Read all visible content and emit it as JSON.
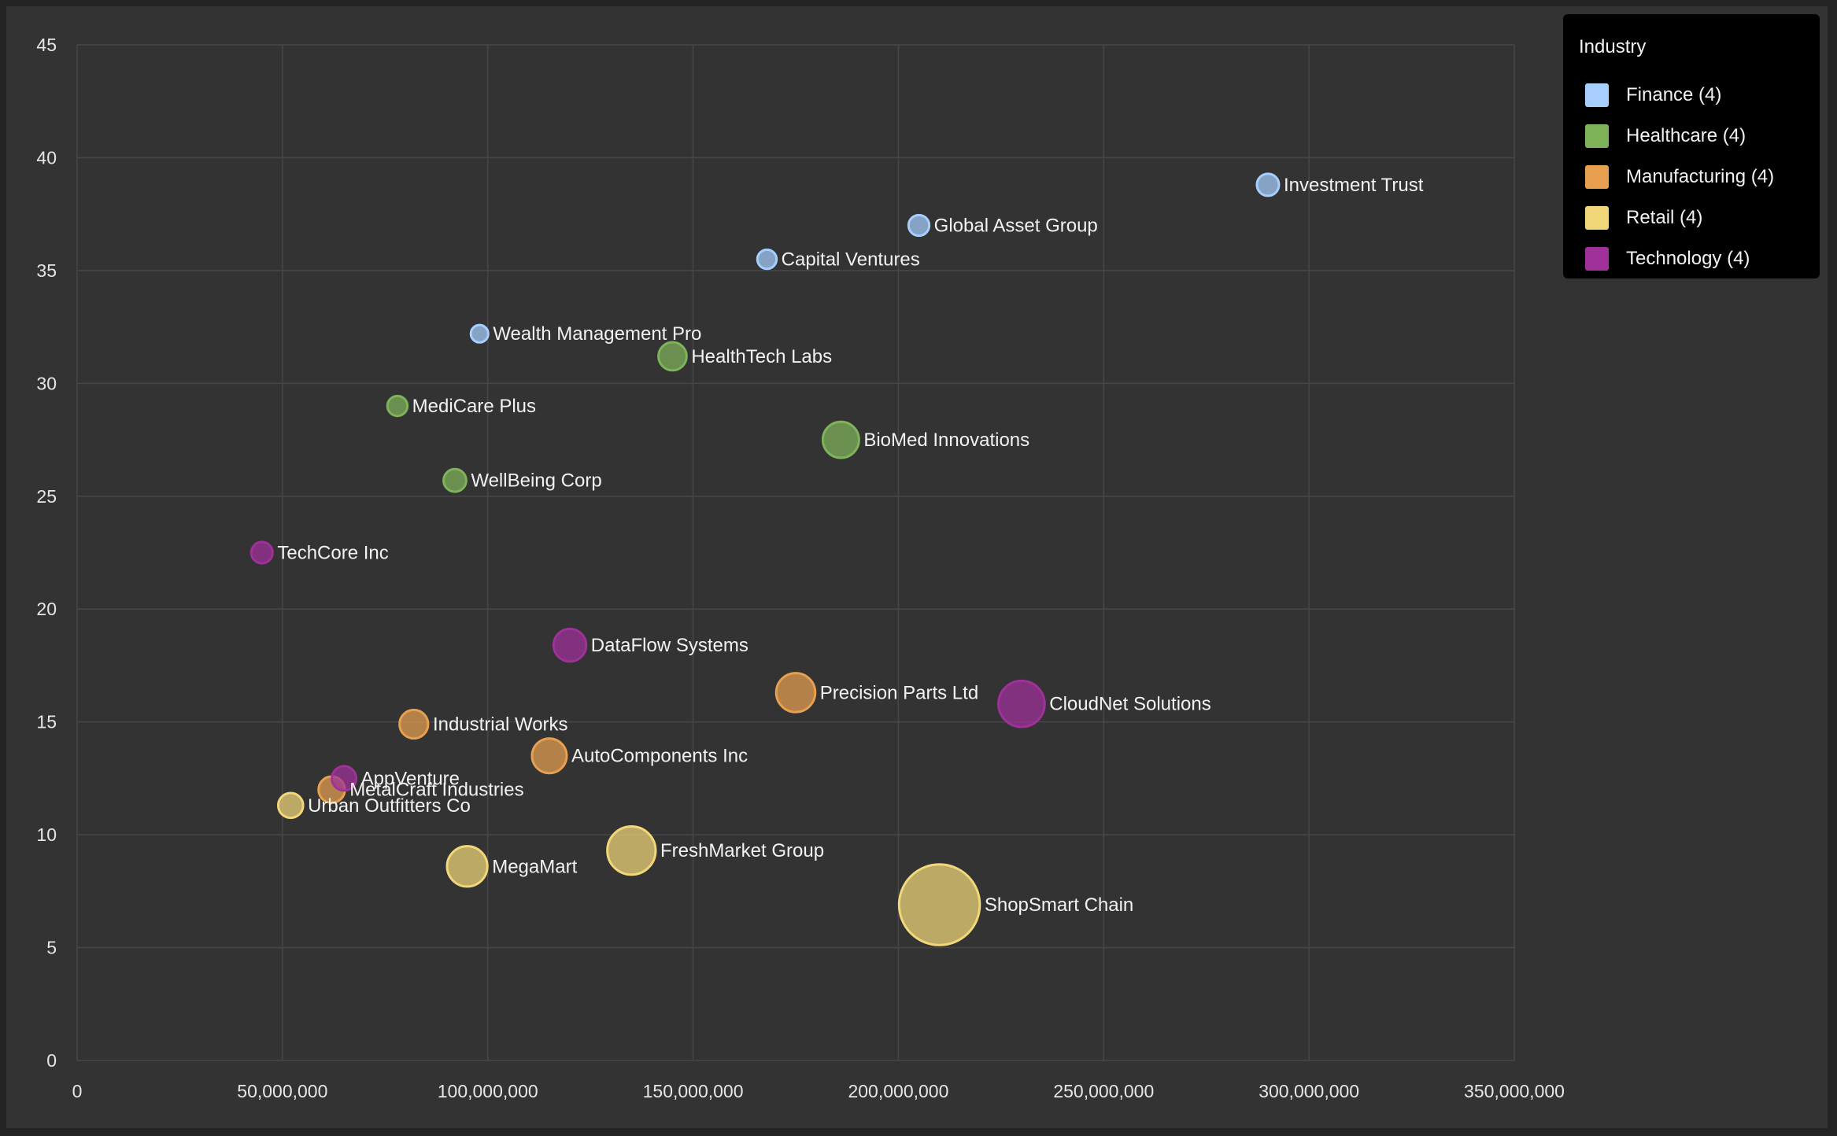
{
  "chart_data": {
    "type": "scatter",
    "title": "",
    "xlabel": "",
    "ylabel": "",
    "xlim": [
      0,
      350000000
    ],
    "ylim": [
      0,
      45
    ],
    "x_ticks": [
      0,
      50000000,
      100000000,
      150000000,
      200000000,
      250000000,
      300000000,
      350000000
    ],
    "x_tick_labels": [
      "0",
      "50,000,000",
      "100,000,000",
      "150,000,000",
      "200,000,000",
      "250,000,000",
      "300,000,000",
      "350,000,000"
    ],
    "y_ticks": [
      0,
      5,
      10,
      15,
      20,
      25,
      30,
      35,
      40,
      45
    ],
    "y_tick_labels": [
      "0",
      "5",
      "10",
      "15",
      "20",
      "25",
      "30",
      "35",
      "40",
      "45"
    ],
    "grid": true,
    "legend": {
      "title": "Industry",
      "placement": "top-right",
      "entries": [
        {
          "name": "Finance",
          "label": "Finance (4)",
          "color": "#a6cfff"
        },
        {
          "name": "Healthcare",
          "label": "Healthcare (4)",
          "color": "#7fb35a"
        },
        {
          "name": "Manufacturing",
          "label": "Manufacturing (4)",
          "color": "#e6a050"
        },
        {
          "name": "Retail",
          "label": "Retail (4)",
          "color": "#f2d77a"
        },
        {
          "name": "Technology",
          "label": "Technology (4)",
          "color": "#a0309a"
        }
      ]
    },
    "points": [
      {
        "label": "Investment Trust",
        "industry": "Finance",
        "x": 290000000,
        "y": 38.8,
        "size": 1.0
      },
      {
        "label": "Global Asset Group",
        "industry": "Finance",
        "x": 205000000,
        "y": 37.0,
        "size": 0.8
      },
      {
        "label": "Capital Ventures",
        "industry": "Finance",
        "x": 168000000,
        "y": 35.5,
        "size": 0.6
      },
      {
        "label": "Wealth Management Pro",
        "industry": "Finance",
        "x": 98000000,
        "y": 32.2,
        "size": 0.4
      },
      {
        "label": "HealthTech Labs",
        "industry": "Healthcare",
        "x": 145000000,
        "y": 31.2,
        "size": 2.2
      },
      {
        "label": "MediCare Plus",
        "industry": "Healthcare",
        "x": 78000000,
        "y": 29.0,
        "size": 0.7
      },
      {
        "label": "BioMed Innovations",
        "industry": "Healthcare",
        "x": 186000000,
        "y": 27.5,
        "size": 4.5
      },
      {
        "label": "WellBeing Corp",
        "industry": "Healthcare",
        "x": 92000000,
        "y": 25.7,
        "size": 1.1
      },
      {
        "label": "Precision Parts Ltd",
        "industry": "Manufacturing",
        "x": 175000000,
        "y": 16.3,
        "size": 5.5
      },
      {
        "label": "Industrial Works",
        "industry": "Manufacturing",
        "x": 82000000,
        "y": 14.9,
        "size": 2.3
      },
      {
        "label": "AutoComponents Inc",
        "industry": "Manufacturing",
        "x": 115000000,
        "y": 13.5,
        "size": 4.0
      },
      {
        "label": "MetalCraft Industries",
        "industry": "Manufacturing",
        "x": 62000000,
        "y": 12.0,
        "size": 1.8
      },
      {
        "label": "ShopSmart Chain",
        "industry": "Retail",
        "x": 210000000,
        "y": 6.9,
        "size": 32.0
      },
      {
        "label": "FreshMarket Group",
        "industry": "Retail",
        "x": 135000000,
        "y": 9.3,
        "size": 9.5
      },
      {
        "label": "MegaMart",
        "industry": "Retail",
        "x": 95000000,
        "y": 8.6,
        "size": 6.0
      },
      {
        "label": "Urban Outfitters Co",
        "industry": "Retail",
        "x": 52000000,
        "y": 11.3,
        "size": 1.5
      },
      {
        "label": "CloudNet Solutions",
        "industry": "Technology",
        "x": 230000000,
        "y": 15.8,
        "size": 8.5
      },
      {
        "label": "DataFlow Systems",
        "industry": "Technology",
        "x": 120000000,
        "y": 18.4,
        "size": 3.4
      },
      {
        "label": "TechCore Inc",
        "industry": "Technology",
        "x": 45000000,
        "y": 22.5,
        "size": 0.9
      },
      {
        "label": "AppVenture",
        "industry": "Technology",
        "x": 65000000,
        "y": 12.5,
        "size": 1.4
      }
    ]
  }
}
